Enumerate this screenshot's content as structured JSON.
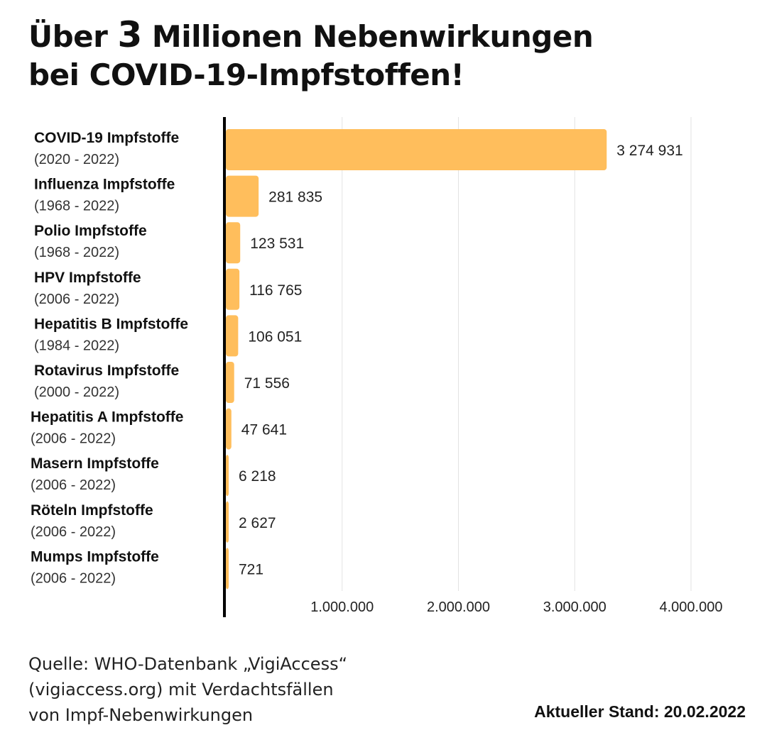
{
  "title": {
    "pre": "Über ",
    "number": "3",
    "post": " Millionen Nebenwirkungen",
    "line2": "bei COVID-19-Impfstoffen!"
  },
  "chart_data": {
    "type": "bar",
    "orientation": "horizontal",
    "categories": [
      {
        "name": "COVID-19 Impfstoffe",
        "years": "(2020 - 2022)",
        "value": 3274931,
        "label": "3 274 931"
      },
      {
        "name": "Influenza Impfstoffe",
        "years": "(1968 - 2022)",
        "value": 281835,
        "label": "281 835"
      },
      {
        "name": "Polio Impfstoffe",
        "years": "(1968 - 2022)",
        "value": 123531,
        "label": "123 531"
      },
      {
        "name": "HPV Impfstoffe",
        "years": "(2006 - 2022)",
        "value": 116765,
        "label": "116 765"
      },
      {
        "name": "Hepatitis B Impfstoffe",
        "years": "(1984 - 2022)",
        "value": 106051,
        "label": "106 051"
      },
      {
        "name": "Rotavirus Impfstoffe",
        "years": "(2000 - 2022)",
        "value": 71556,
        "label": "71 556"
      },
      {
        "name": "Hepatitis A Impfstoffe",
        "years": "(2006 - 2022)",
        "value": 47641,
        "label": "47 641"
      },
      {
        "name": "Masern Impfstoffe",
        "years": "(2006 - 2022)",
        "value": 6218,
        "label": "6 218"
      },
      {
        "name": "Röteln Impfstoffe",
        "years": "(2006 - 2022)",
        "value": 2627,
        "label": "2 627"
      },
      {
        "name": "Mumps Impfstoffe",
        "years": "(2006 - 2022)",
        "value": 721,
        "label": "721"
      }
    ],
    "xlim": [
      0,
      4000000
    ],
    "xticks": [
      {
        "value": 1000000,
        "label": "1.000.000"
      },
      {
        "value": 2000000,
        "label": "2.000.000"
      },
      {
        "value": 3000000,
        "label": "3.000.000"
      },
      {
        "value": 4000000,
        "label": "4.000.000"
      }
    ],
    "grid": true,
    "bar_color": "#ffbe5c",
    "axis_color": "#000000",
    "grid_color": "#e2e2e2"
  },
  "source": {
    "line1": "Quelle: WHO-Datenbank „VigiAccess“",
    "line2": "(vigiaccess.org) mit Verdachtsfällen",
    "line3": "von Impf-Nebenwirkungen"
  },
  "stand": "Aktueller Stand: 20.02.2022"
}
